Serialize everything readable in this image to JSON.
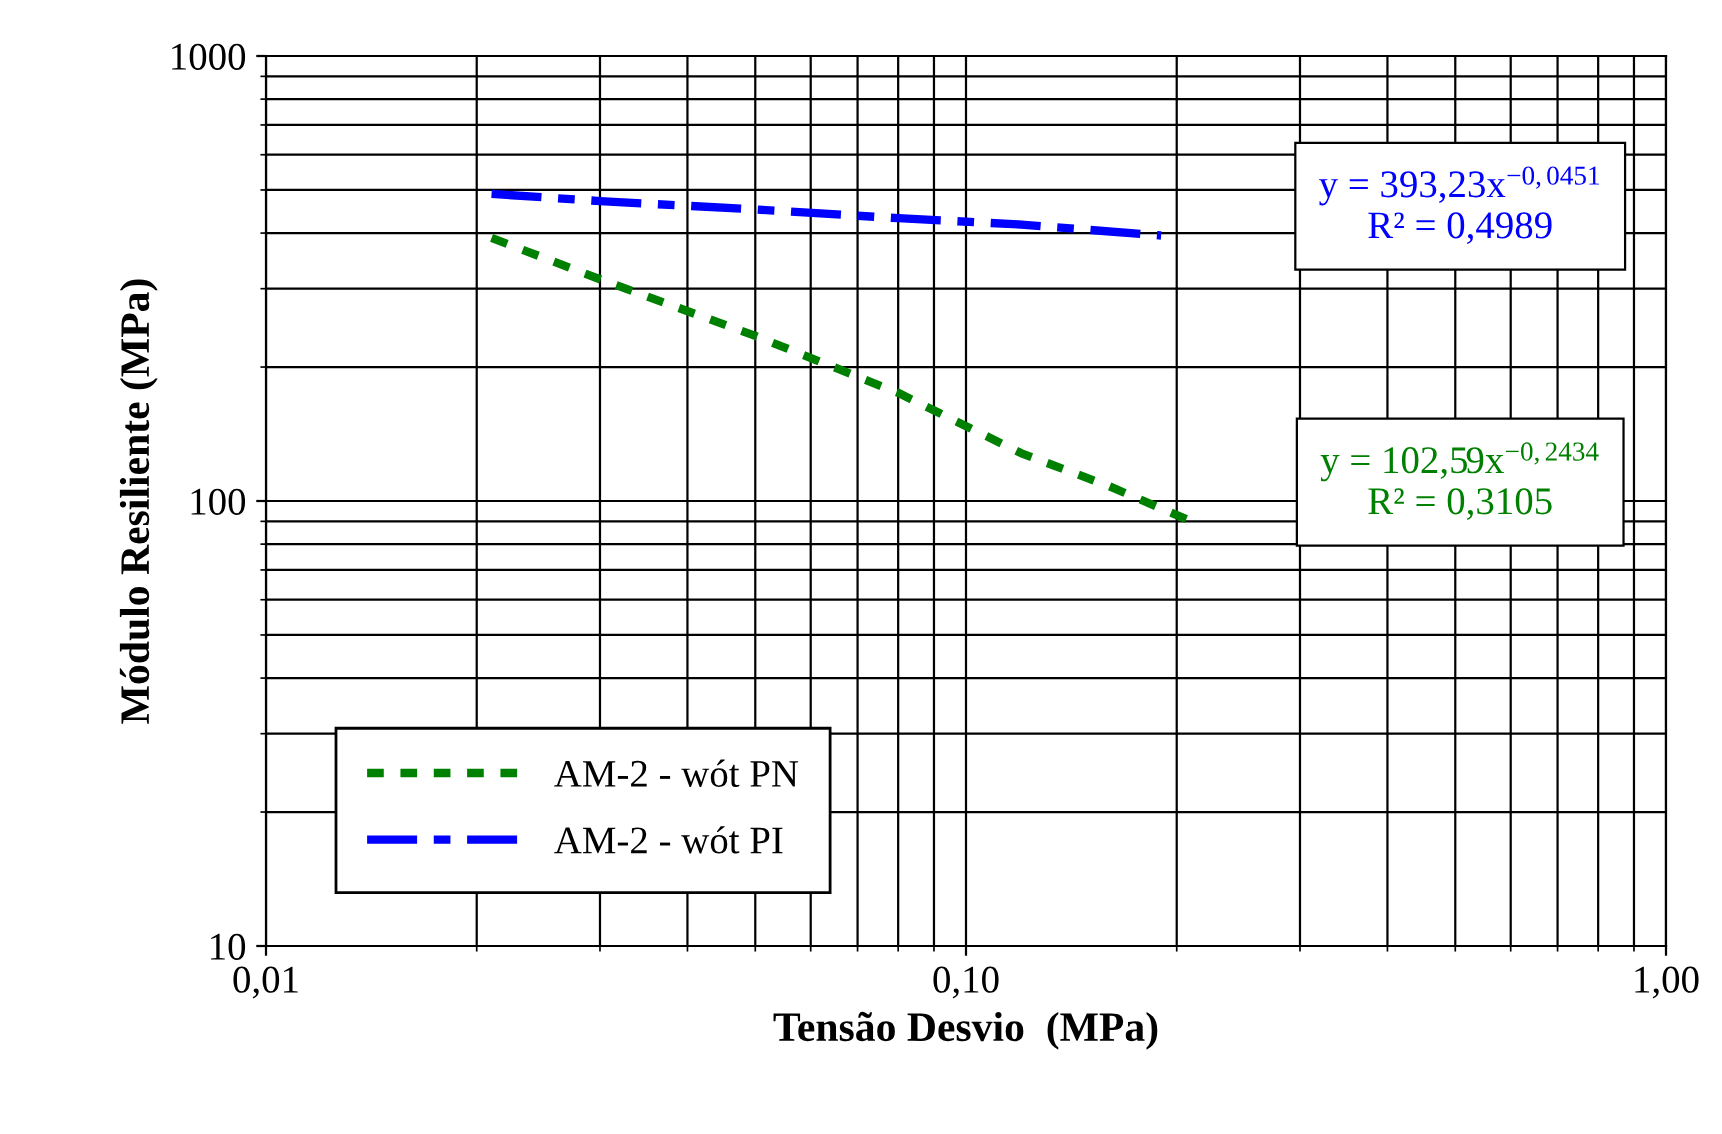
{
  "chart_data": {
    "type": "line",
    "xlabel": "Tensão Desvio  (MPa)",
    "ylabel": "Módulo Resiliente (MPa)",
    "log": "xy",
    "xlim": [
      0.01,
      1
    ],
    "ylim": [
      10,
      1000
    ],
    "xticks": [
      {
        "value": 0.01,
        "label": "0,01"
      },
      {
        "value": 0.1,
        "label": "0,10"
      },
      {
        "value": 1,
        "label": "1,00"
      }
    ],
    "yticks": [
      10,
      100,
      1000
    ],
    "grid": true,
    "legend": "bottom left",
    "series": [
      {
        "name": "AM-2 - wót PN",
        "color": "#008000",
        "line_style": "dotted",
        "x": [
          0.021,
          0.03,
          0.05,
          0.08,
          0.12,
          0.16,
          0.21
        ],
        "values": [
          390,
          315,
          235,
          175,
          128,
          108,
          90
        ]
      },
      {
        "name": "AM-2 - wót PI",
        "color": "#0000ff",
        "line_style": "dashed",
        "x": [
          0.021,
          0.03,
          0.05,
          0.08,
          0.12,
          0.19
        ],
        "values": [
          490,
          472,
          452,
          432,
          418,
          395
        ]
      }
    ],
    "annotations": [
      "y = 102,59x$^{−0,2434}$\nR² = 0,3105",
      "y = 393,23x$^{−0,0451}$\nR² = 0,4989"
    ]
  }
}
